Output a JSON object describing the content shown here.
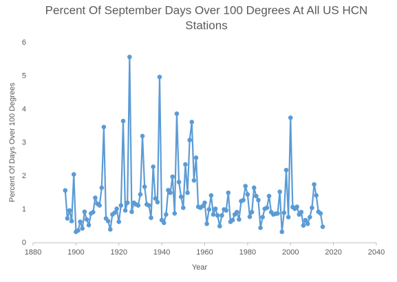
{
  "chart_data": {
    "type": "line",
    "title": "Percent Of September Days Over 100 Degrees At All US HCN Stations",
    "title_lines": [
      "Percent Of September Days Over 100 Degrees At All US HCN",
      "Stations"
    ],
    "x_label": "Year",
    "y_label": "Percent Of Days Over 100 Degrees",
    "x": [
      1895,
      1896,
      1897,
      1898,
      1899,
      1900,
      1901,
      1902,
      1903,
      1904,
      1905,
      1906,
      1907,
      1908,
      1909,
      1910,
      1911,
      1912,
      1913,
      1914,
      1915,
      1916,
      1917,
      1918,
      1919,
      1920,
      1921,
      1922,
      1923,
      1924,
      1925,
      1926,
      1927,
      1928,
      1929,
      1930,
      1931,
      1932,
      1933,
      1934,
      1935,
      1936,
      1937,
      1938,
      1939,
      1940,
      1941,
      1942,
      1943,
      1944,
      1945,
      1946,
      1947,
      1948,
      1949,
      1950,
      1951,
      1952,
      1953,
      1954,
      1955,
      1956,
      1957,
      1958,
      1959,
      1960,
      1961,
      1962,
      1963,
      1964,
      1965,
      1966,
      1967,
      1968,
      1969,
      1970,
      1971,
      1972,
      1973,
      1974,
      1975,
      1976,
      1977,
      1978,
      1979,
      1980,
      1981,
      1982,
      1983,
      1984,
      1985,
      1986,
      1987,
      1988,
      1989,
      1990,
      1991,
      1992,
      1993,
      1994,
      1995,
      1996,
      1997,
      1998,
      1999,
      2000,
      2001,
      2002,
      2003,
      2004,
      2005,
      2006,
      2007,
      2008,
      2009,
      2010,
      2011,
      2012,
      2013,
      2014,
      2015
    ],
    "series": [
      {
        "name": "Percent",
        "color": "#5b9bd5",
        "values": [
          1.57,
          0.73,
          0.97,
          0.65,
          2.05,
          0.33,
          0.37,
          0.63,
          0.43,
          0.93,
          0.7,
          0.53,
          0.88,
          0.92,
          1.35,
          1.17,
          1.12,
          1.65,
          3.47,
          0.73,
          0.65,
          0.4,
          0.85,
          0.9,
          1.02,
          0.63,
          1.12,
          3.65,
          0.97,
          1.2,
          5.57,
          0.93,
          1.2,
          1.15,
          1.12,
          1.45,
          3.2,
          1.68,
          1.15,
          1.12,
          0.75,
          2.28,
          1.33,
          1.22,
          4.97,
          0.68,
          0.6,
          0.85,
          1.58,
          1.5,
          1.98,
          0.88,
          3.87,
          1.82,
          1.38,
          1.05,
          2.35,
          1.5,
          3.08,
          3.62,
          1.87,
          2.55,
          1.08,
          1.05,
          1.1,
          1.2,
          0.57,
          1.0,
          1.42,
          0.85,
          1.02,
          0.82,
          0.5,
          0.82,
          1.0,
          0.97,
          1.5,
          0.63,
          0.68,
          0.85,
          0.92,
          0.7,
          1.25,
          1.28,
          1.7,
          1.45,
          0.78,
          0.92,
          1.65,
          1.4,
          1.28,
          0.45,
          0.77,
          1.02,
          1.05,
          1.4,
          0.92,
          0.85,
          0.87,
          0.88,
          1.53,
          0.33,
          0.9,
          2.18,
          0.77,
          3.75,
          1.07,
          1.02,
          1.08,
          0.85,
          0.92,
          0.52,
          0.68,
          0.57,
          0.77,
          1.05,
          1.75,
          1.42,
          0.93,
          0.88,
          0.48
        ]
      }
    ],
    "xlim": [
      1880,
      2040
    ],
    "xticks": [
      1880,
      1900,
      1920,
      1940,
      1960,
      1980,
      2000,
      2020,
      2040
    ],
    "ylim": [
      0,
      6
    ],
    "yticks": [
      0,
      1,
      2,
      3,
      4,
      5,
      6
    ],
    "grid": false
  }
}
